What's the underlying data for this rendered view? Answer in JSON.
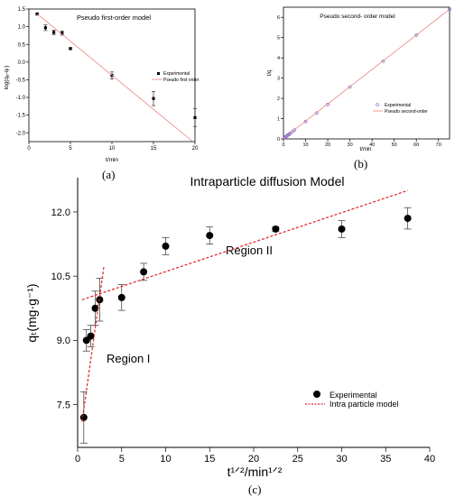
{
  "panel_labels": {
    "a": "(a)",
    "b": "(b)",
    "c": "(c)"
  },
  "chart_data": [
    {
      "id": "a",
      "type": "scatter",
      "title": "Pseudo first-order model",
      "xlabel": "t/min",
      "ylabel": "log(qₑ-qₜ)",
      "xlim": [
        0,
        20
      ],
      "ylim": [
        -2.25,
        1.5
      ],
      "xticks": [
        0,
        5,
        10,
        15,
        20
      ],
      "xtick_labels": [
        "0",
        "5",
        "10",
        "15",
        "20"
      ],
      "yticks": [
        1.5,
        1.0,
        0.5,
        0.0,
        -0.5,
        -1.0,
        -1.5,
        -2.0
      ],
      "ytick_labels": [
        "1.5",
        "1.0",
        "0.5",
        "0.0",
        "-0.5",
        "-1.0",
        "-1.5",
        "-2.0"
      ],
      "legend": {
        "position": "right",
        "entries": [
          "Experimental",
          "Pseudo first order"
        ]
      },
      "series": [
        {
          "name": "Experimental",
          "kind": "points",
          "x": [
            1,
            2,
            3,
            4,
            5,
            10,
            15,
            20
          ],
          "y": [
            1.36,
            0.97,
            0.84,
            0.82,
            0.38,
            -0.38,
            -1.03,
            -1.57
          ],
          "err": [
            0.03,
            0.08,
            0.06,
            0.06,
            0.03,
            0.1,
            0.2,
            0.25
          ]
        },
        {
          "name": "Pseudo first order",
          "kind": "line",
          "x": [
            1,
            20
          ],
          "y": [
            1.36,
            -2.3
          ]
        }
      ],
      "colors": {
        "points": "#000000",
        "line": "#f08080"
      }
    },
    {
      "id": "b",
      "type": "scatter",
      "title": "Pseudo second- order model",
      "xlabel": "t/min",
      "ylabel": "t/q",
      "xlim": [
        0,
        75
      ],
      "ylim": [
        0,
        6.5
      ],
      "xticks": [
        0,
        10,
        20,
        30,
        40,
        50,
        60,
        70
      ],
      "xtick_labels": [
        "0",
        "10",
        "20",
        "30",
        "40",
        "50",
        "60",
        "70"
      ],
      "yticks": [
        0,
        1,
        2,
        3,
        4,
        5,
        6
      ],
      "ytick_labels": [
        "0",
        "1",
        "2",
        "3",
        "4",
        "5",
        "6"
      ],
      "legend": {
        "position": "bottom-right",
        "entries": [
          "Experimental",
          "Pseudo second-order"
        ]
      },
      "series": [
        {
          "name": "Experimental",
          "kind": "points",
          "x": [
            0.5,
            1,
            1.5,
            2,
            2.5,
            3,
            4,
            5,
            10,
            15,
            20,
            30,
            45,
            60,
            75
          ],
          "y": [
            0.07,
            0.11,
            0.15,
            0.19,
            0.23,
            0.27,
            0.35,
            0.44,
            0.86,
            1.28,
            1.7,
            2.56,
            3.84,
            5.13,
            6.4
          ]
        },
        {
          "name": "Pseudo second-order",
          "kind": "line",
          "x": [
            0,
            75
          ],
          "y": [
            0.03,
            6.4
          ]
        }
      ],
      "colors": {
        "points": "#6a5acd",
        "line": "#f08080"
      }
    },
    {
      "id": "c",
      "type": "scatter",
      "title": "Intraparticle diffusion Model",
      "xlabel": "t¹ᐟ²/min¹ᐟ²",
      "ylabel": "qₜ(mg·g⁻¹)",
      "xlim": [
        0,
        40
      ],
      "ylim": [
        6.5,
        12.8
      ],
      "xticks": [
        0,
        5,
        10,
        15,
        20,
        25,
        30,
        35,
        40
      ],
      "xtick_labels": [
        "0",
        "5",
        "10",
        "15",
        "20",
        "25",
        "30",
        "35",
        "40"
      ],
      "yticks": [
        7.5,
        9.0,
        10.5,
        12.0
      ],
      "ytick_labels": [
        "7.5",
        "9.0",
        "10.5",
        "12.0"
      ],
      "annotations": [
        "Region I",
        "Region II"
      ],
      "legend": {
        "position": "bottom-right",
        "entries": [
          "Experimental",
          "Intra particle model"
        ]
      },
      "series": [
        {
          "name": "Experimental",
          "kind": "points",
          "x": [
            0.7,
            1.0,
            1.5,
            2.0,
            2.5,
            5.0,
            7.5,
            10.0,
            15.0,
            22.5,
            30.0,
            37.5
          ],
          "y": [
            7.2,
            9.0,
            9.1,
            9.75,
            9.95,
            10.0,
            10.6,
            11.2,
            11.45,
            11.6,
            11.6,
            11.85
          ],
          "err": [
            0.6,
            0.25,
            0.25,
            0.4,
            0.5,
            0.3,
            0.2,
            0.2,
            0.2,
            0.05,
            0.2,
            0.25
          ]
        },
        {
          "name": "Intra particle model",
          "kind": "line",
          "x": [
            0.5,
            37.5
          ],
          "y": [
            9.95,
            12.5
          ]
        },
        {
          "name": "Intra particle model",
          "kind": "line",
          "x": [
            0.5,
            3.0
          ],
          "y": [
            7.1,
            10.75
          ]
        }
      ],
      "colors": {
        "points": "#000000",
        "line": "#e02020"
      }
    }
  ]
}
